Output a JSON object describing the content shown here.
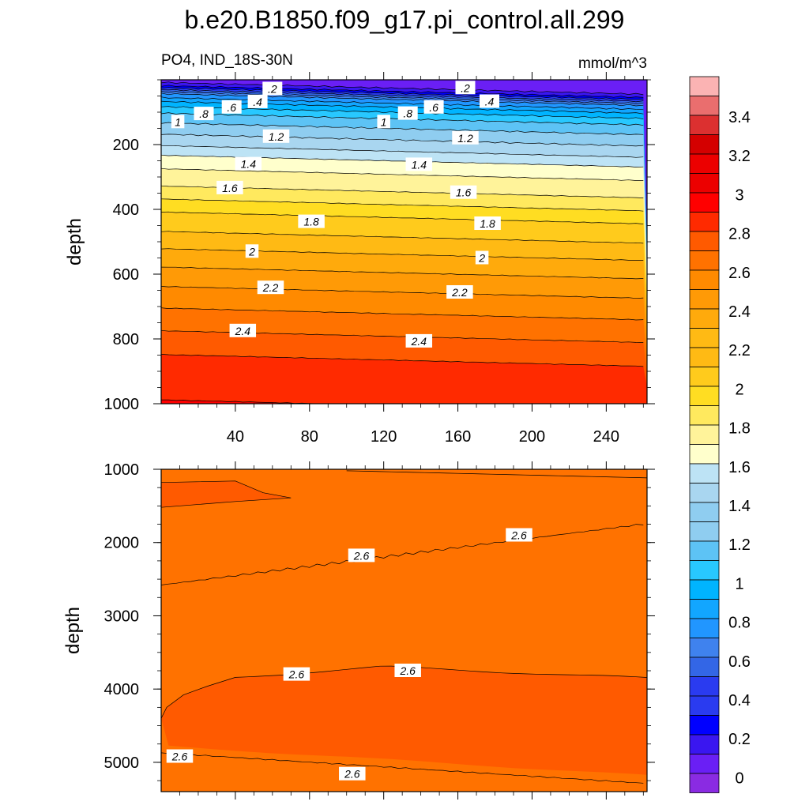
{
  "title": "b.e20.B1850.f09_g17.pi_control.all.299",
  "subtitle_left": "PO4, IND_18S-30N",
  "subtitle_right": "mmol/m^3",
  "colors": {
    "levels": [
      "#8a2be2",
      "#6a1ff5",
      "#3a16f0",
      "#0000ff",
      "#2a3bf0",
      "#3366e6",
      "#3f82ee",
      "#2196ff",
      "#12a6ff",
      "#00b4ff",
      "#28c8ff",
      "#5dc3f5",
      "#8fcdf0",
      "#a9d6f0",
      "#bde3f5",
      "#ffffcc",
      "#fff39a",
      "#ffe95e",
      "#ffdd22",
      "#ffcb1c",
      "#ffba14",
      "#ffaa0c",
      "#ff9a06",
      "#ff8a00",
      "#ff7200",
      "#ff5a00",
      "#ff2a00",
      "#ff0000",
      "#ec0000",
      "#d40000",
      "#dc3030",
      "#ea6e6e",
      "#fbb3b3"
    ],
    "line": "#000000"
  },
  "chart_data": [
    {
      "type": "contour",
      "panel": "upper",
      "variable": "PO4",
      "region": "IND_18S-30N",
      "units": "mmol/m^3",
      "xlim": [
        0,
        262
      ],
      "ylim": [
        1000,
        0
      ],
      "ylabel": "depth",
      "xticks": [
        "40",
        "80",
        "120",
        "160",
        "200",
        "240"
      ],
      "yticks": [
        "200",
        "400",
        "600",
        "800",
        "1000"
      ],
      "contour_labels": [
        {
          "text": ".2",
          "x": 60,
          "depth": 28
        },
        {
          "text": ".2",
          "x": 164,
          "depth": 25
        },
        {
          "text": ".4",
          "x": 52,
          "depth": 68
        },
        {
          "text": ".4",
          "x": 177,
          "depth": 67
        },
        {
          "text": ".6",
          "x": 38,
          "depth": 85
        },
        {
          "text": ".6",
          "x": 147,
          "depth": 85
        },
        {
          "text": ".8",
          "x": 23,
          "depth": 105
        },
        {
          "text": ".8",
          "x": 133,
          "depth": 104
        },
        {
          "text": "1",
          "x": 9,
          "depth": 130
        },
        {
          "text": "1",
          "x": 120,
          "depth": 130
        },
        {
          "text": "1.2",
          "x": 62,
          "depth": 175
        },
        {
          "text": "1.2",
          "x": 164,
          "depth": 180
        },
        {
          "text": "1.4",
          "x": 47,
          "depth": 260
        },
        {
          "text": "1.4",
          "x": 139,
          "depth": 262
        },
        {
          "text": "1.6",
          "x": 37,
          "depth": 334
        },
        {
          "text": "1.6",
          "x": 163,
          "depth": 348
        },
        {
          "text": "1.8",
          "x": 81,
          "depth": 438
        },
        {
          "text": "1.8",
          "x": 176,
          "depth": 444
        },
        {
          "text": "2",
          "x": 49,
          "depth": 530
        },
        {
          "text": "2",
          "x": 173,
          "depth": 550
        },
        {
          "text": "2.2",
          "x": 59,
          "depth": 642
        },
        {
          "text": "2.2",
          "x": 161,
          "depth": 656
        },
        {
          "text": "2.4",
          "x": 44,
          "depth": 775
        },
        {
          "text": "2.4",
          "x": 139,
          "depth": 807
        }
      ]
    },
    {
      "type": "contour",
      "panel": "lower",
      "variable": "PO4",
      "units": "mmol/m^3",
      "xlim": [
        0,
        262
      ],
      "ylim": [
        5400,
        1000
      ],
      "ylabel": "depth",
      "yticks": [
        "1000",
        "2000",
        "3000",
        "4000",
        "5000"
      ],
      "contour_labels": [
        {
          "text": "2.6",
          "x": 108,
          "depth": 2180
        },
        {
          "text": "2.6",
          "x": 193,
          "depth": 1900
        },
        {
          "text": "2.6",
          "x": 73,
          "depth": 3800
        },
        {
          "text": "2.6",
          "x": 133,
          "depth": 3750
        },
        {
          "text": "2.6",
          "x": 10,
          "depth": 4920
        },
        {
          "text": "2.6",
          "x": 103,
          "depth": 5160
        }
      ]
    }
  ],
  "colorbar": {
    "labels": [
      "3.4",
      "3.2",
      "3",
      "2.8",
      "2.6",
      "2.4",
      "2.2",
      "2",
      "1.8",
      "1.6",
      "1.4",
      "1.2",
      "1",
      "0.8",
      "0.6",
      "0.4",
      "0.2",
      "0"
    ]
  }
}
